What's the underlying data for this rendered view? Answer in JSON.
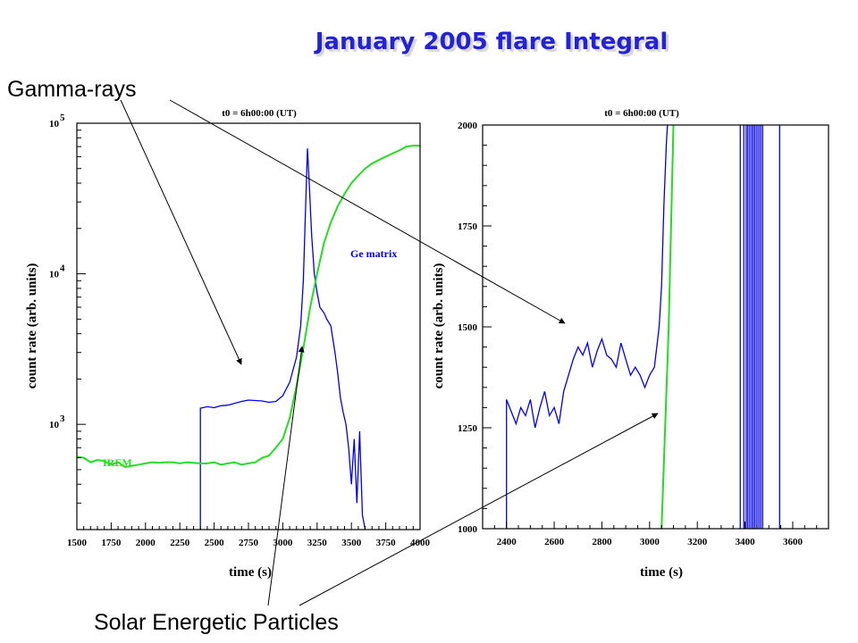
{
  "slide": {
    "title": "January 2005 flare Integral",
    "annotation_gamma": "Gamma-rays",
    "annotation_sep": "Solar Energetic Particles"
  },
  "colors": {
    "title": "#2222dd",
    "blue_series": "#0000ee",
    "green_series": "#22dd22",
    "axis": "#000000"
  },
  "chart_data": [
    {
      "type": "line",
      "title": "t0 = 6h00:00 (UT)",
      "xlabel": "time (s)",
      "ylabel": "count rate (arb. units)",
      "yscale": "log",
      "xlim": [
        1500,
        4000
      ],
      "ylim": [
        200,
        100000
      ],
      "xticks": [
        1500,
        1750,
        2000,
        2250,
        2500,
        2750,
        3000,
        3250,
        3500,
        3750,
        4000
      ],
      "yticks": [
        {
          "value": 1000,
          "base": "10",
          "exp": "3"
        },
        {
          "value": 10000,
          "base": "10",
          "exp": "4"
        },
        {
          "value": 100000,
          "base": "10",
          "exp": "5"
        }
      ],
      "series": [
        {
          "name": "Ge matrix",
          "color": "#0000ee",
          "points": [
            [
              2400,
              150
            ],
            [
              2400,
              1280
            ],
            [
              2450,
              1310
            ],
            [
              2500,
              1290
            ],
            [
              2550,
              1330
            ],
            [
              2600,
              1340
            ],
            [
              2650,
              1380
            ],
            [
              2700,
              1420
            ],
            [
              2750,
              1450
            ],
            [
              2800,
              1440
            ],
            [
              2850,
              1430
            ],
            [
              2900,
              1400
            ],
            [
              2950,
              1420
            ],
            [
              3000,
              1550
            ],
            [
              3050,
              1900
            ],
            [
              3100,
              2800
            ],
            [
              3130,
              4500
            ],
            [
              3150,
              9000
            ],
            [
              3165,
              25000
            ],
            [
              3180,
              68000
            ],
            [
              3190,
              45000
            ],
            [
              3210,
              18000
            ],
            [
              3230,
              10000
            ],
            [
              3250,
              7500
            ],
            [
              3270,
              6000
            ],
            [
              3300,
              5500
            ],
            [
              3320,
              5000
            ],
            [
              3350,
              4500
            ],
            [
              3380,
              3000
            ],
            [
              3400,
              2200
            ],
            [
              3420,
              1500
            ],
            [
              3440,
              1200
            ],
            [
              3460,
              1000
            ],
            [
              3480,
              700
            ],
            [
              3500,
              400
            ],
            [
              3520,
              800
            ],
            [
              3540,
              300
            ],
            [
              3560,
              900
            ],
            [
              3580,
              250
            ],
            [
              3600,
              200
            ]
          ]
        },
        {
          "name": "IREM",
          "color": "#22dd22",
          "points": [
            [
              1500,
              610
            ],
            [
              1550,
              600
            ],
            [
              1600,
              560
            ],
            [
              1650,
              580
            ],
            [
              1700,
              570
            ],
            [
              1750,
              540
            ],
            [
              1800,
              560
            ],
            [
              1850,
              520
            ],
            [
              1900,
              530
            ],
            [
              1950,
              540
            ],
            [
              2000,
              550
            ],
            [
              2050,
              560
            ],
            [
              2100,
              555
            ],
            [
              2150,
              560
            ],
            [
              2200,
              560
            ],
            [
              2250,
              550
            ],
            [
              2300,
              560
            ],
            [
              2350,
              555
            ],
            [
              2400,
              550
            ],
            [
              2450,
              550
            ],
            [
              2500,
              560
            ],
            [
              2550,
              540
            ],
            [
              2600,
              550
            ],
            [
              2650,
              560
            ],
            [
              2700,
              540
            ],
            [
              2750,
              550
            ],
            [
              2800,
              560
            ],
            [
              2850,
              600
            ],
            [
              2900,
              620
            ],
            [
              2950,
              700
            ],
            [
              3000,
              800
            ],
            [
              3050,
              1100
            ],
            [
              3100,
              1800
            ],
            [
              3150,
              3200
            ],
            [
              3200,
              6000
            ],
            [
              3250,
              10000
            ],
            [
              3300,
              16000
            ],
            [
              3350,
              22000
            ],
            [
              3400,
              28000
            ],
            [
              3450,
              34000
            ],
            [
              3500,
              40000
            ],
            [
              3550,
              45000
            ],
            [
              3600,
              50000
            ],
            [
              3650,
              54000
            ],
            [
              3700,
              57000
            ],
            [
              3750,
              60000
            ],
            [
              3800,
              63000
            ],
            [
              3850,
              66000
            ],
            [
              3900,
              70000
            ],
            [
              3950,
              71000
            ],
            [
              4000,
              71000
            ]
          ]
        }
      ]
    },
    {
      "type": "line",
      "title": "t0 = 6h00:00 (UT)",
      "xlabel": "time (s)",
      "ylabel": "count rate (arb. units)",
      "xlim": [
        2300,
        3750
      ],
      "ylim": [
        1000,
        2000
      ],
      "xticks": [
        2400,
        2600,
        2800,
        3000,
        3200,
        3400,
        3600
      ],
      "yticks": [
        1000,
        1250,
        1500,
        1750,
        2000
      ],
      "series": [
        {
          "name": "Ge matrix",
          "color": "#0000ee",
          "points": [
            [
              2400,
              1000
            ],
            [
              2400,
              1320
            ],
            [
              2420,
              1290
            ],
            [
              2440,
              1260
            ],
            [
              2460,
              1300
            ],
            [
              2480,
              1280
            ],
            [
              2500,
              1320
            ],
            [
              2520,
              1250
            ],
            [
              2540,
              1300
            ],
            [
              2560,
              1340
            ],
            [
              2580,
              1280
            ],
            [
              2600,
              1300
            ],
            [
              2620,
              1260
            ],
            [
              2640,
              1340
            ],
            [
              2660,
              1380
            ],
            [
              2680,
              1420
            ],
            [
              2700,
              1450
            ],
            [
              2720,
              1430
            ],
            [
              2740,
              1460
            ],
            [
              2760,
              1400
            ],
            [
              2780,
              1440
            ],
            [
              2800,
              1470
            ],
            [
              2820,
              1430
            ],
            [
              2840,
              1420
            ],
            [
              2860,
              1400
            ],
            [
              2880,
              1460
            ],
            [
              2900,
              1420
            ],
            [
              2920,
              1380
            ],
            [
              2940,
              1400
            ],
            [
              2960,
              1380
            ],
            [
              2980,
              1350
            ],
            [
              3000,
              1380
            ],
            [
              3020,
              1400
            ],
            [
              3040,
              1500
            ],
            [
              3050,
              1600
            ],
            [
              3060,
              1800
            ],
            [
              3070,
              1950
            ],
            [
              3075,
              2000
            ]
          ]
        },
        {
          "name": "IREM",
          "color": "#22dd22",
          "points": [
            [
              3050,
              1000
            ],
            [
              3080,
              1500
            ],
            [
              3100,
              2000
            ]
          ]
        }
      ]
    }
  ]
}
